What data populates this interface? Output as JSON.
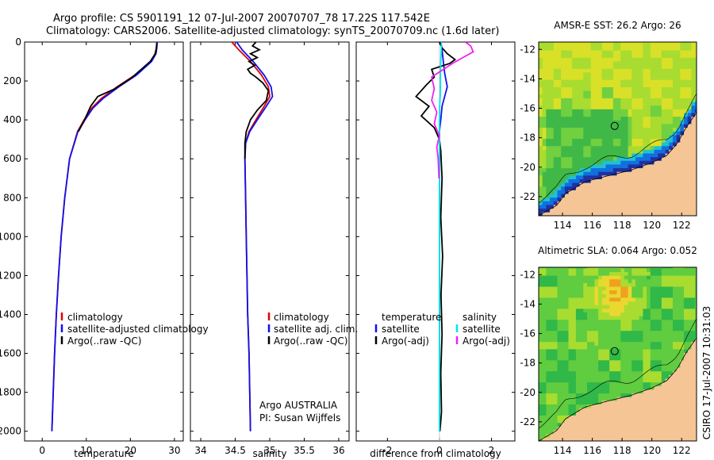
{
  "header": {
    "line1": "Argo profile: CS 5901191_12 07-Jul-2007 20070707_78 17.22S 117.542E",
    "line2": "Climatology: CARS2006. Satellite-adjusted climatology: synTS_20070709.nc (1.6d later)"
  },
  "side_label": "CSIRO 17-Jul-2007 10:31:03",
  "colors": {
    "clim": "#e00000",
    "sat": "#1010ee",
    "argo": "#000000",
    "sal_sat": "#00e5ee",
    "sal_argo": "#ee22ee",
    "land": "#f5c596"
  },
  "chart_data": [
    {
      "type": "line",
      "xlabel": "temperature",
      "xlim": [
        -4,
        32
      ],
      "ylim": [
        2050,
        0
      ],
      "xticks": [
        0,
        10,
        20,
        30
      ],
      "yticks": [
        0,
        200,
        400,
        600,
        800,
        1000,
        1200,
        1400,
        1600,
        1800,
        2000
      ],
      "legend": [
        "climatology",
        "satellite-adjusted climatology",
        "Argo(..raw -QC)"
      ],
      "series": [
        {
          "name": "climatology",
          "color": "#e00000",
          "x": [
            26.0,
            25.9,
            25.6,
            24.6,
            21.0,
            17.0,
            13.4,
            11.2,
            9.5,
            8.0,
            6.2,
            5.1,
            4.3,
            3.7,
            3.2,
            2.8,
            2.5,
            2.2
          ],
          "y": [
            0,
            30,
            60,
            100,
            170,
            230,
            290,
            340,
            400,
            460,
            600,
            800,
            1000,
            1200,
            1400,
            1600,
            1800,
            2000
          ]
        },
        {
          "name": "satellite-adjusted climatology",
          "color": "#1010ee",
          "x": [
            26.1,
            26.0,
            25.8,
            24.8,
            21.4,
            17.4,
            13.8,
            11.5,
            9.7,
            8.1,
            6.2,
            5.1,
            4.3,
            3.7,
            3.2,
            2.8,
            2.5,
            2.2
          ],
          "y": [
            0,
            30,
            60,
            100,
            170,
            230,
            290,
            340,
            400,
            460,
            600,
            800,
            1000,
            1200,
            1400,
            1600,
            1800,
            2000
          ]
        },
        {
          "name": "Argo(..raw -QC)",
          "color": "#000000",
          "x": [
            26.0,
            25.9,
            25.7,
            24.5,
            20.5,
            16.5,
            12.6,
            11.0,
            9.6,
            8.2
          ],
          "y": [
            5,
            30,
            60,
            100,
            180,
            240,
            280,
            330,
            400,
            460
          ]
        }
      ]
    },
    {
      "type": "line",
      "xlabel": "salinity",
      "xlim": [
        33.85,
        36.15
      ],
      "ylim": [
        2050,
        0
      ],
      "xticks": [
        34,
        34.5,
        35,
        35.5,
        36
      ],
      "legend": [
        "climatology",
        "satellite adj. clim.",
        "Argo(..raw -QC)"
      ],
      "annotations": [
        "Argo AUSTRALIA",
        "PI: Susan Wijffels"
      ],
      "series": [
        {
          "name": "climatology",
          "color": "#e00000",
          "x": [
            34.45,
            34.55,
            34.72,
            34.88,
            34.98,
            35.0,
            34.92,
            34.8,
            34.7,
            34.65,
            34.64,
            34.65,
            34.66,
            34.67,
            34.68,
            34.7,
            34.72
          ],
          "y": [
            0,
            40,
            100,
            170,
            230,
            280,
            330,
            400,
            460,
            520,
            600,
            800,
            1000,
            1200,
            1400,
            1600,
            2000
          ]
        },
        {
          "name": "satellite adj. clim.",
          "color": "#1010ee",
          "x": [
            34.52,
            34.6,
            34.76,
            34.92,
            35.02,
            35.04,
            34.95,
            34.82,
            34.71,
            34.65,
            34.64,
            34.65,
            34.66,
            34.67,
            34.68,
            34.7,
            34.72
          ],
          "y": [
            0,
            40,
            100,
            170,
            230,
            280,
            330,
            400,
            460,
            520,
            600,
            800,
            1000,
            1200,
            1400,
            1600,
            2000
          ]
        },
        {
          "name": "Argo(..raw -QC)",
          "color": "#000000",
          "x": [
            34.8,
            34.75,
            34.85,
            34.72,
            34.82,
            34.7,
            34.78,
            34.68,
            34.72,
            34.8,
            34.9,
            34.98,
            34.95,
            34.82,
            34.72,
            34.66,
            34.64,
            34.64
          ],
          "y": [
            0,
            20,
            40,
            60,
            80,
            100,
            120,
            140,
            160,
            180,
            210,
            250,
            300,
            350,
            400,
            460,
            520,
            600
          ]
        }
      ]
    },
    {
      "type": "line",
      "xlabel": "difference from climatology",
      "xlim": [
        -3.2,
        2.9
      ],
      "ylim": [
        2050,
        0
      ],
      "xticks": [
        -2,
        0,
        2
      ],
      "legend": [
        "temperature",
        "satellite",
        "Argo(-adj)",
        "salinity",
        "satellite",
        "Argo(-adj)"
      ],
      "series": [
        {
          "name": "temperature satellite",
          "color": "#1010ee",
          "x": [
            0.05,
            0.1,
            0.15,
            0.2,
            0.3,
            0.2,
            0.1,
            0.05,
            0.0,
            0.0,
            0.0,
            0.0
          ],
          "y": [
            0,
            40,
            100,
            160,
            230,
            280,
            330,
            400,
            460,
            600,
            1000,
            2000
          ]
        },
        {
          "name": "temperature Argo(-adj)",
          "color": "#000000",
          "x": [
            0.0,
            0.1,
            0.3,
            0.6,
            0.4,
            -0.3,
            -0.2,
            -0.5,
            -0.9,
            -0.4,
            -0.7,
            -0.2,
            0.0,
            0.05,
            0.1,
            0.05,
            0.12,
            0.06,
            0.1,
            0.05,
            0.08,
            0.02
          ],
          "y": [
            0,
            30,
            60,
            90,
            110,
            140,
            180,
            220,
            280,
            330,
            380,
            440,
            500,
            560,
            700,
            900,
            1100,
            1300,
            1500,
            1700,
            1900,
            2000
          ]
        },
        {
          "name": "salinity satellite",
          "color": "#00e5ee",
          "x": [
            0.08,
            0.07,
            0.05,
            0.04,
            0.04,
            0.03,
            0.01,
            0.0,
            0.0,
            0.0,
            0.0
          ],
          "y": [
            0,
            40,
            100,
            160,
            230,
            280,
            330,
            400,
            460,
            600,
            2000
          ]
        },
        {
          "name": "salinity Argo(-adj)",
          "color": "#ee22ee",
          "x": [
            1.0,
            1.2,
            1.3,
            0.9,
            0.5,
            -0.3,
            -0.2,
            -0.3,
            -0.1,
            -0.2,
            0.0,
            -0.1,
            -0.05,
            -0.02
          ],
          "y": [
            0,
            20,
            50,
            80,
            110,
            180,
            240,
            300,
            360,
            420,
            480,
            540,
            600,
            700
          ]
        }
      ]
    },
    {
      "type": "heatmap",
      "title": "AMSR-E SST: 26.2 Argo: 26",
      "xlim": [
        112.4,
        123.0
      ],
      "ylim": [
        -23.3,
        -11.5
      ],
      "xticks": [
        114,
        116,
        118,
        120,
        122
      ],
      "yticks": [
        -12,
        -14,
        -16,
        -18,
        -20,
        -22
      ],
      "marker": {
        "lon": 117.5,
        "lat": -17.2
      }
    },
    {
      "type": "heatmap",
      "title": "Altimetric SLA: 0.064 Argo: 0.052",
      "xlim": [
        112.4,
        123.0
      ],
      "ylim": [
        -23.3,
        -11.5
      ],
      "xticks": [
        114,
        116,
        118,
        120,
        122
      ],
      "yticks": [
        -12,
        -14,
        -16,
        -18,
        -20,
        -22
      ],
      "marker": {
        "lon": 117.5,
        "lat": -17.2
      }
    }
  ]
}
